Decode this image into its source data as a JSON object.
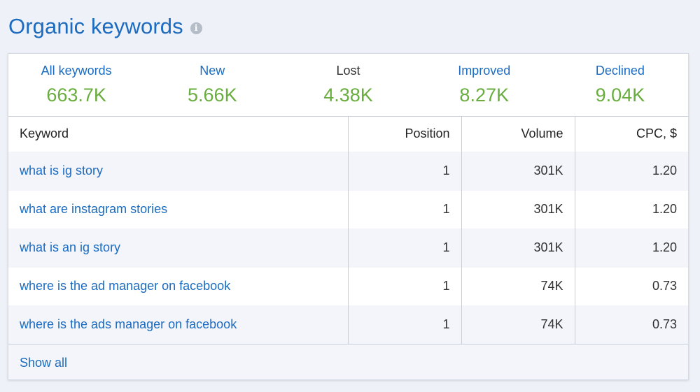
{
  "widget": {
    "title": "Organic keywords",
    "info_icon": "i"
  },
  "stats": [
    {
      "label": "All keywords",
      "value": "663.7K",
      "is_link": true
    },
    {
      "label": "New",
      "value": "5.66K",
      "is_link": true
    },
    {
      "label": "Lost",
      "value": "4.38K",
      "is_link": false
    },
    {
      "label": "Improved",
      "value": "8.27K",
      "is_link": true
    },
    {
      "label": "Declined",
      "value": "9.04K",
      "is_link": true
    }
  ],
  "table": {
    "headers": {
      "keyword": "Keyword",
      "position": "Position",
      "volume": "Volume",
      "cpc": "CPC, $"
    },
    "rows": [
      {
        "keyword": "what is ig story",
        "position": "1",
        "volume": "301K",
        "cpc": "1.20"
      },
      {
        "keyword": "what are instagram stories",
        "position": "1",
        "volume": "301K",
        "cpc": "1.20"
      },
      {
        "keyword": "what is an ig story",
        "position": "1",
        "volume": "301K",
        "cpc": "1.20"
      },
      {
        "keyword": "where is the ad manager on facebook",
        "position": "1",
        "volume": "74K",
        "cpc": "0.73"
      },
      {
        "keyword": "where is the ads manager on facebook",
        "position": "1",
        "volume": "74K",
        "cpc": "0.73"
      }
    ]
  },
  "footer": {
    "show_all_label": "Show all"
  },
  "colors": {
    "accent_blue": "#1b6bc0",
    "value_green": "#6aad3f",
    "background": "#eef1f7"
  }
}
